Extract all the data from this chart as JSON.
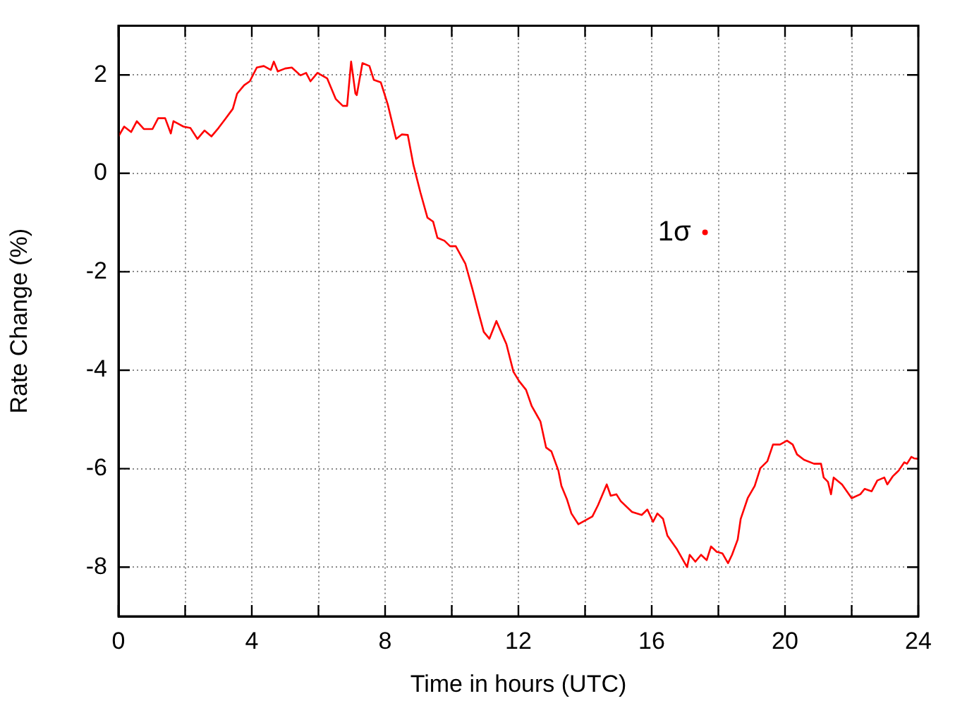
{
  "chart_data": {
    "type": "line",
    "xlabel": "Time in hours (UTC)",
    "ylabel": "Rate Change (%)",
    "xlim": [
      0,
      24
    ],
    "ylim": [
      -9,
      3
    ],
    "xticks": [
      0,
      {
        "value": 2,
        "label": null
      },
      4,
      {
        "value": 6,
        "label": null
      },
      8,
      {
        "value": 10,
        "label": null
      },
      12,
      {
        "value": 14,
        "label": null
      },
      16,
      {
        "value": 18,
        "label": null
      },
      20,
      {
        "value": 22,
        "label": null
      },
      24
    ],
    "yticks": [
      -8,
      -6,
      -4,
      -2,
      0,
      2
    ],
    "grid": true,
    "legend": false,
    "line_style": "solid",
    "annotations": [
      {
        "text": "1σ",
        "x": 17.6,
        "y": -1.2
      }
    ],
    "series": [
      {
        "marker": "none",
        "color": "#ff0000",
        "x": [
          0,
          0.17,
          0.38,
          0.55,
          0.76,
          1.02,
          1.19,
          1.4,
          1.57,
          1.65,
          1.95,
          2.16,
          2.37,
          2.58,
          2.79,
          3.0,
          3.2,
          3.43,
          3.56,
          3.77,
          3.94,
          4.15,
          4.36,
          4.57,
          4.66,
          4.78,
          5.0,
          5.2,
          5.46,
          5.63,
          5.76,
          5.97,
          6.26,
          6.52,
          6.73,
          6.86,
          6.98,
          7.11,
          7.15,
          7.32,
          7.53,
          7.66,
          7.87,
          8.08,
          8.33,
          8.5,
          8.68,
          8.85,
          9.06,
          9.27,
          9.44,
          9.57,
          9.78,
          9.95,
          10.12,
          10.41,
          10.62,
          10.8,
          10.96,
          11.13,
          11.34,
          11.51,
          11.64,
          11.85,
          12.02,
          12.23,
          12.4,
          12.66,
          12.83,
          12.99,
          13.2,
          13.29,
          13.46,
          13.59,
          13.8,
          14.01,
          14.22,
          14.39,
          14.65,
          14.77,
          14.94,
          15.07,
          15.41,
          15.7,
          15.87,
          16.04,
          16.17,
          16.34,
          16.47,
          16.76,
          17.06,
          17.14,
          17.31,
          17.48,
          17.65,
          17.78,
          17.95,
          18.12,
          18.29,
          18.41,
          18.58,
          18.67,
          18.88,
          19.09,
          19.26,
          19.47,
          19.64,
          19.85,
          20.06,
          20.23,
          20.36,
          20.57,
          20.87,
          21.08,
          21.16,
          21.29,
          21.38,
          21.46,
          21.71,
          22.0,
          22.26,
          22.39,
          22.6,
          22.77,
          22.98,
          23.07,
          23.24,
          23.41,
          23.58,
          23.66,
          23.79,
          23.87,
          24
        ],
        "values": [
          0.75,
          0.95,
          0.84,
          1.06,
          0.9,
          0.9,
          1.12,
          1.12,
          0.81,
          1.06,
          0.95,
          0.92,
          0.7,
          0.87,
          0.75,
          0.92,
          1.1,
          1.31,
          1.62,
          1.79,
          1.87,
          2.15,
          2.18,
          2.1,
          2.27,
          2.07,
          2.13,
          2.15,
          1.99,
          2.04,
          1.87,
          2.04,
          1.93,
          1.51,
          1.37,
          1.37,
          2.27,
          1.62,
          1.59,
          2.24,
          2.18,
          1.9,
          1.85,
          1.4,
          0.7,
          0.79,
          0.78,
          0.17,
          -0.39,
          -0.9,
          -0.98,
          -1.31,
          -1.37,
          -1.48,
          -1.48,
          -1.84,
          -2.35,
          -2.82,
          -3.22,
          -3.36,
          -3.0,
          -3.27,
          -3.47,
          -4.03,
          -4.22,
          -4.4,
          -4.73,
          -5.04,
          -5.57,
          -5.65,
          -6.04,
          -6.35,
          -6.63,
          -6.91,
          -7.13,
          -7.05,
          -6.97,
          -6.74,
          -6.32,
          -6.55,
          -6.52,
          -6.66,
          -6.88,
          -6.94,
          -6.83,
          -7.08,
          -6.91,
          -7.02,
          -7.36,
          -7.64,
          -8.0,
          -7.75,
          -7.89,
          -7.75,
          -7.86,
          -7.58,
          -7.69,
          -7.72,
          -7.92,
          -7.75,
          -7.44,
          -7.02,
          -6.6,
          -6.35,
          -5.99,
          -5.85,
          -5.51,
          -5.51,
          -5.43,
          -5.51,
          -5.71,
          -5.82,
          -5.9,
          -5.9,
          -6.18,
          -6.27,
          -6.52,
          -6.18,
          -6.32,
          -6.6,
          -6.52,
          -6.41,
          -6.46,
          -6.24,
          -6.18,
          -6.32,
          -6.15,
          -6.04,
          -5.87,
          -5.9,
          -5.76,
          -5.79,
          -5.8
        ]
      },
      {
        "type": "scatter",
        "marker": "circle",
        "color": "#ff0000",
        "x": [
          17.6
        ],
        "values": [
          -1.2
        ]
      }
    ]
  }
}
